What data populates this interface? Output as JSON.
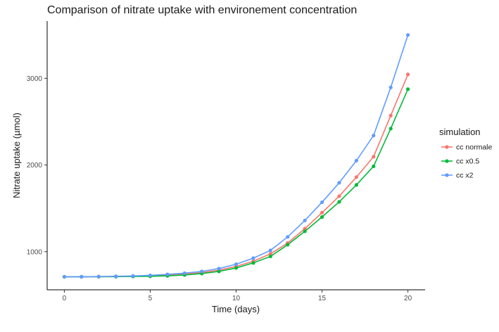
{
  "chart_data": {
    "type": "line",
    "title": "Comparison of nitrate uptake with environement concentration",
    "xlabel": "Time (days)",
    "ylabel": "Nitrate uptake (µmol)",
    "xlim": [
      -1,
      21
    ],
    "ylim": [
      560,
      3660
    ],
    "x_ticks": [
      0,
      5,
      10,
      15,
      20
    ],
    "y_ticks": [
      1000,
      2000,
      3000
    ],
    "x_tick_labels": [
      "0",
      "5",
      "10",
      "15",
      "20"
    ],
    "y_tick_labels": [
      "1000",
      "2000",
      "3000"
    ],
    "grid": false,
    "legend": {
      "title": "simulation",
      "position": "right"
    },
    "x": [
      0,
      1,
      2,
      3,
      4,
      5,
      6,
      7,
      8,
      9,
      10,
      11,
      12,
      13,
      14,
      15,
      16,
      17,
      18,
      19,
      20
    ],
    "series": [
      {
        "name": "cc normale",
        "color": "#F8766D",
        "values": [
          710,
          710,
          712,
          714,
          717,
          721,
          728,
          740,
          758,
          786,
          830,
          890,
          975,
          1100,
          1265,
          1450,
          1640,
          1860,
          2095,
          2570,
          3045
        ]
      },
      {
        "name": "cc x0.5",
        "color": "#00BA38",
        "values": [
          710,
          710,
          711,
          712,
          714,
          716,
          721,
          731,
          747,
          772,
          812,
          870,
          945,
          1080,
          1235,
          1400,
          1575,
          1770,
          1985,
          2420,
          2875
        ]
      },
      {
        "name": "cc x2",
        "color": "#619CFF",
        "values": [
          710,
          711,
          713,
          716,
          720,
          727,
          738,
          752,
          772,
          805,
          855,
          925,
          1015,
          1170,
          1360,
          1570,
          1795,
          2050,
          2340,
          2895,
          3500
        ]
      }
    ]
  }
}
